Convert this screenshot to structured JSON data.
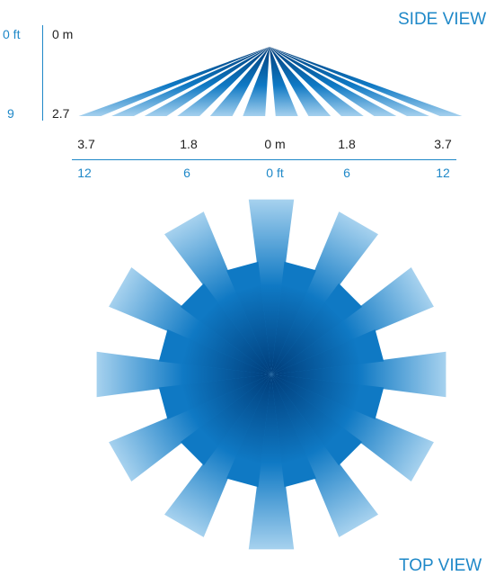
{
  "side_view": {
    "title": "SIDE VIEW",
    "height_ft_top": "0 ft",
    "height_m_top": "0 m",
    "height_ft_bottom": "9",
    "height_m_bottom": "2.7",
    "distance_m_labels": [
      "3.7",
      "1.8",
      "0 m",
      "1.8",
      "3.7"
    ],
    "distance_ft_labels": [
      "12",
      "6",
      "0 ft",
      "6",
      "12"
    ]
  },
  "top_view": {
    "title": "TOP VIEW"
  },
  "colors": {
    "label_blue": "#1e88c8",
    "label_dark": "#222222",
    "beam_light": "#a9d3ef",
    "beam_mid": "#0f79c4",
    "beam_deep": "#003d7a"
  },
  "diagram": {
    "side_beams": 12,
    "top_long_beams": 12,
    "top_mid_beams": 12,
    "top_short_beams": 12
  }
}
